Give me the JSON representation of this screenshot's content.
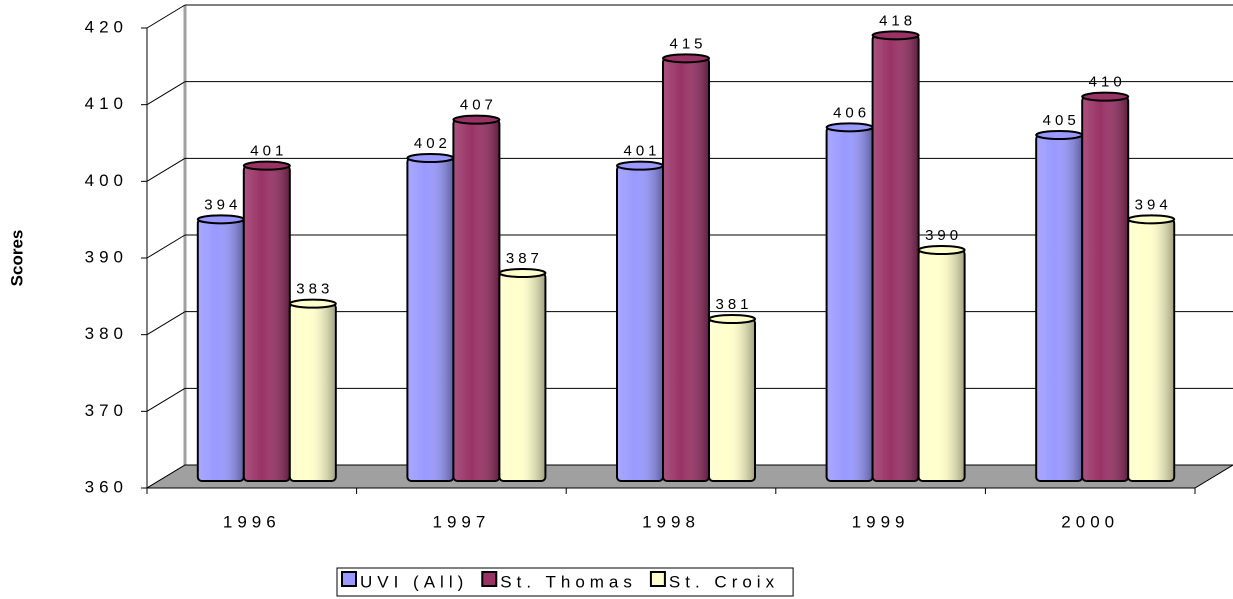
{
  "chart_data": {
    "type": "bar",
    "y_label": "Scores",
    "categories": [
      "1996",
      "1997",
      "1998",
      "1999",
      "2000"
    ],
    "series": [
      {
        "name": "UVI (All)",
        "color": "#9999ff",
        "values": [
          394,
          402,
          401,
          406,
          405
        ]
      },
      {
        "name": "St. Thomas",
        "color": "#993366",
        "values": [
          401,
          407,
          415,
          418,
          410
        ]
      },
      {
        "name": "St. Croix",
        "color": "#ffffcc",
        "values": [
          383,
          387,
          381,
          390,
          394
        ]
      }
    ],
    "ylim": [
      360,
      420
    ],
    "yticks": [
      360,
      370,
      380,
      390,
      400,
      410,
      420
    ],
    "grid": true,
    "legend": "bottom"
  }
}
